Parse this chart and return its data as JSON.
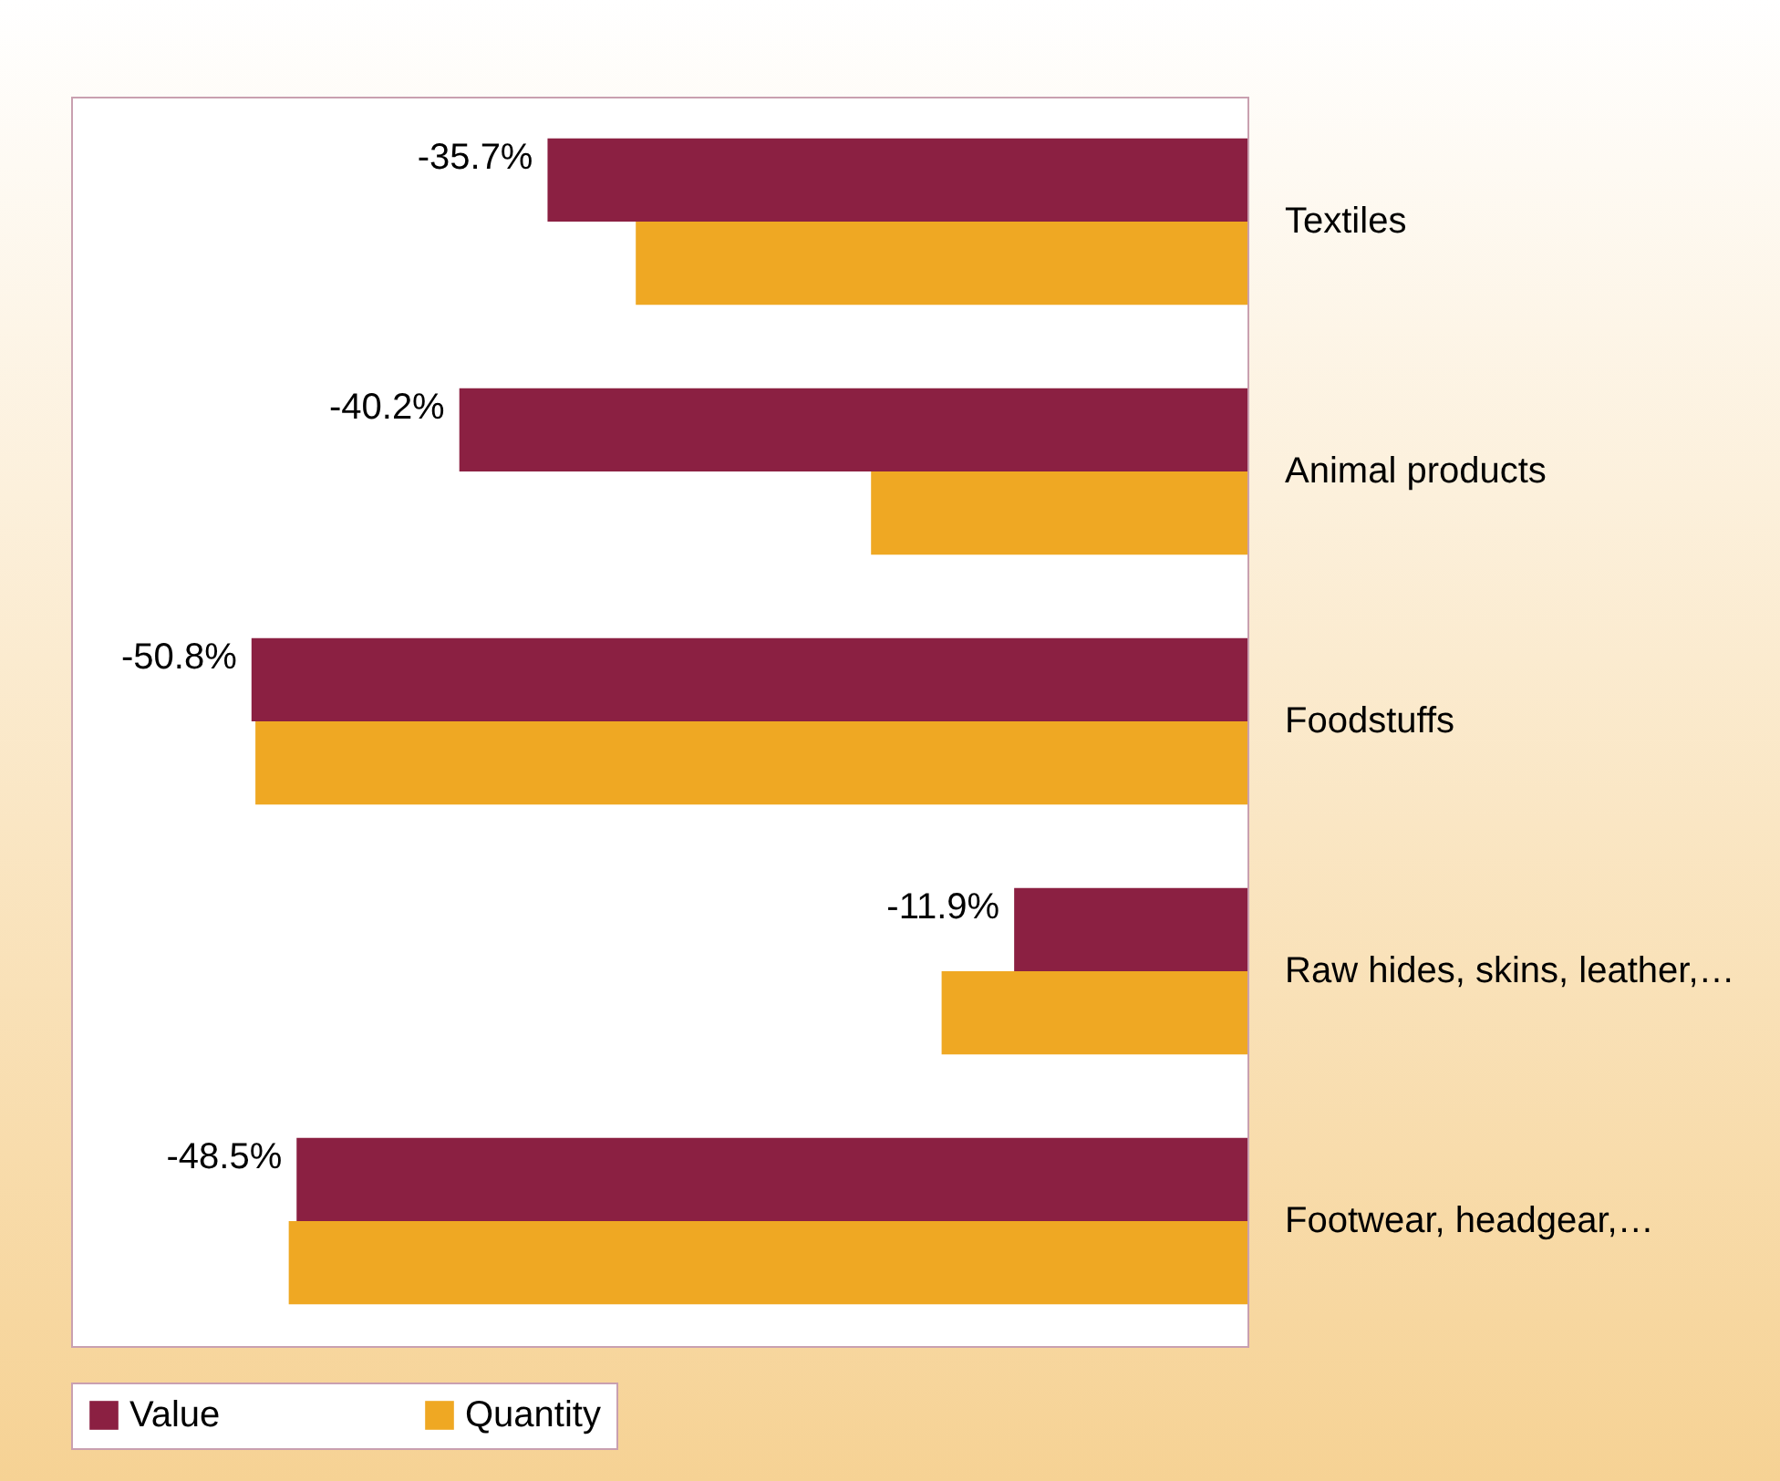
{
  "chart_data": {
    "type": "bar",
    "orientation": "horizontal",
    "categories": [
      "Textiles",
      "Animal products",
      "Foodstuffs",
      "Raw hides, skins, leather,…",
      "Footwear, headgear,…"
    ],
    "series": [
      {
        "name": "Value",
        "color": "#8b2042",
        "values": [
          -35.7,
          -40.2,
          -50.8,
          -11.9,
          -48.5
        ],
        "value_labels": [
          "-35.7%",
          "-40.2%",
          "-50.8%",
          "-11.9%",
          "-48.5%"
        ]
      },
      {
        "name": "Quantity",
        "color": "#efa823",
        "values": [
          -31.2,
          -19.2,
          -50.6,
          -15.6,
          -48.9
        ]
      }
    ],
    "xlim": [
      -60,
      0
    ],
    "tick_labels": "y",
    "legend": "bottom"
  }
}
